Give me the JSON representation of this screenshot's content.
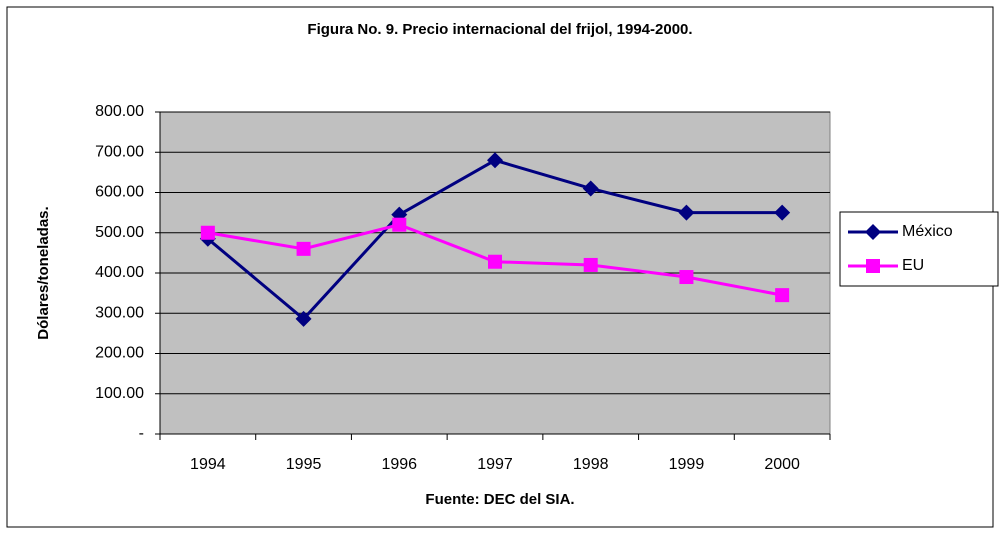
{
  "chart_data": {
    "type": "line",
    "title": "Figura No. 9. Precio internacional del frijol, 1994-2000.",
    "x_label": "Fuente: DEC del SIA.",
    "y_label": "Dólares/toneladas.",
    "categories": [
      "1994",
      "1995",
      "1996",
      "1997",
      "1998",
      "1999",
      "2000"
    ],
    "series": [
      {
        "name": "México",
        "color": "#000080",
        "marker": "diamond",
        "values": [
          485,
          286,
          545,
          680,
          610,
          550,
          550
        ]
      },
      {
        "name": "EU",
        "color": "#ff00ff",
        "marker": "square",
        "values": [
          500,
          460,
          520,
          428,
          420,
          390,
          345
        ]
      }
    ],
    "ylim": [
      0,
      800
    ],
    "yticks": [
      {
        "value": 0,
        "label": "-"
      },
      {
        "value": 100,
        "label": "100.00"
      },
      {
        "value": 200,
        "label": "200.00"
      },
      {
        "value": 300,
        "label": "300.00"
      },
      {
        "value": 400,
        "label": "400.00"
      },
      {
        "value": 500,
        "label": "500.00"
      },
      {
        "value": 600,
        "label": "600.00"
      },
      {
        "value": 700,
        "label": "700.00"
      },
      {
        "value": 800,
        "label": "800.00"
      }
    ],
    "grid": true,
    "plot_background": "#c0c0c0",
    "legend": "right"
  }
}
